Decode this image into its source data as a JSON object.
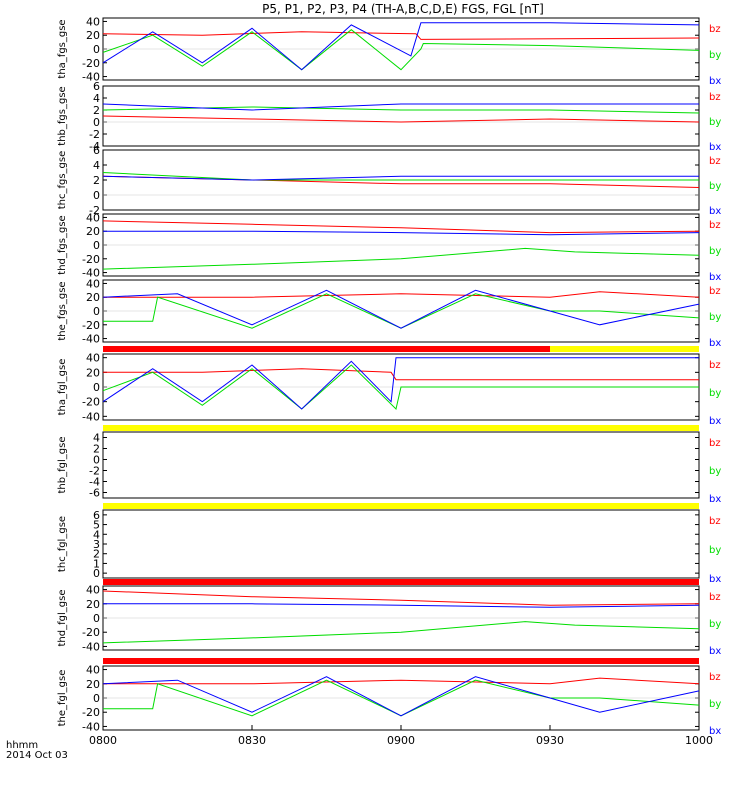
{
  "title": "P5, P1, P2, P3, P4 (TH-A,B,C,D,E) FGS, FGL [nT]",
  "footer": {
    "time_label": "hhmm",
    "date_label": "2014 Oct 03"
  },
  "colors": {
    "bx": "#0000ff",
    "by": "#00dd00",
    "bz": "#ff0000",
    "red_bar": "#ff0000",
    "yellow_bar": "#ffff00"
  },
  "chart_data": {
    "type": "line",
    "x_ticks": [
      "0800",
      "0830",
      "0900",
      "0930",
      "1000"
    ],
    "x_range_minutes": [
      0,
      120
    ],
    "legend": [
      "bz",
      "by",
      "bx"
    ],
    "panels": [
      {
        "ylabel": "tha_fgs_gse",
        "yticks": [
          "40",
          "20",
          "0",
          "-20",
          "-40"
        ],
        "ylim": [
          -45,
          45
        ],
        "series": [
          {
            "name": "bz",
            "points": [
              [
                0,
                22
              ],
              [
                20,
                20
              ],
              [
                40,
                25
              ],
              [
                63,
                22
              ],
              [
                64,
                14
              ],
              [
                120,
                16
              ]
            ]
          },
          {
            "name": "by",
            "points": [
              [
                0,
                -5
              ],
              [
                10,
                20
              ],
              [
                20,
                -25
              ],
              [
                30,
                25
              ],
              [
                40,
                -30
              ],
              [
                50,
                28
              ],
              [
                60,
                -30
              ],
              [
                64,
                0
              ],
              [
                64.5,
                8
              ],
              [
                90,
                5
              ],
              [
                120,
                -2
              ]
            ]
          },
          {
            "name": "bx",
            "points": [
              [
                0,
                -20
              ],
              [
                10,
                25
              ],
              [
                20,
                -20
              ],
              [
                30,
                30
              ],
              [
                40,
                -30
              ],
              [
                50,
                35
              ],
              [
                62,
                -10
              ],
              [
                64,
                38
              ],
              [
                90,
                38
              ],
              [
                120,
                35
              ]
            ]
          }
        ]
      },
      {
        "ylabel": "thb_fgs_gse",
        "yticks": [
          "6",
          "4",
          "2",
          "0",
          "-2",
          "-4"
        ],
        "ylim": [
          -4,
          6
        ],
        "series": [
          {
            "name": "bz",
            "points": [
              [
                0,
                1
              ],
              [
                30,
                0.5
              ],
              [
                60,
                0
              ],
              [
                90,
                0.5
              ],
              [
                120,
                0
              ]
            ]
          },
          {
            "name": "by",
            "points": [
              [
                0,
                2
              ],
              [
                30,
                2.5
              ],
              [
                60,
                2
              ],
              [
                90,
                2
              ],
              [
                120,
                1.5
              ]
            ]
          },
          {
            "name": "bx",
            "points": [
              [
                0,
                3
              ],
              [
                30,
                2
              ],
              [
                60,
                3
              ],
              [
                90,
                3
              ],
              [
                120,
                3
              ]
            ]
          }
        ]
      },
      {
        "ylabel": "thc_fgs_gse",
        "yticks": [
          "6",
          "4",
          "2",
          "0",
          "-2"
        ],
        "ylim": [
          -2,
          6
        ],
        "series": [
          {
            "name": "bz",
            "points": [
              [
                0,
                2.5
              ],
              [
                30,
                2
              ],
              [
                60,
                1.5
              ],
              [
                90,
                1.5
              ],
              [
                120,
                1
              ]
            ]
          },
          {
            "name": "by",
            "points": [
              [
                0,
                3
              ],
              [
                30,
                2
              ],
              [
                60,
                2
              ],
              [
                90,
                2
              ],
              [
                120,
                2
              ]
            ]
          },
          {
            "name": "bx",
            "points": [
              [
                0,
                2.5
              ],
              [
                30,
                2
              ],
              [
                60,
                2.5
              ],
              [
                90,
                2.5
              ],
              [
                120,
                2.5
              ]
            ]
          }
        ]
      },
      {
        "ylabel": "thd_fgs_gse",
        "yticks": [
          "40",
          "20",
          "0",
          "-20",
          "-40"
        ],
        "ylim": [
          -45,
          45
        ],
        "series": [
          {
            "name": "bz",
            "points": [
              [
                0,
                35
              ],
              [
                30,
                30
              ],
              [
                60,
                25
              ],
              [
                90,
                18
              ],
              [
                120,
                20
              ]
            ]
          },
          {
            "name": "by",
            "points": [
              [
                0,
                -35
              ],
              [
                30,
                -28
              ],
              [
                60,
                -20
              ],
              [
                85,
                -5
              ],
              [
                95,
                -10
              ],
              [
                120,
                -15
              ]
            ]
          },
          {
            "name": "bx",
            "points": [
              [
                0,
                20
              ],
              [
                30,
                20
              ],
              [
                60,
                18
              ],
              [
                90,
                15
              ],
              [
                120,
                18
              ]
            ]
          }
        ]
      },
      {
        "ylabel": "the_fgs_gse",
        "yticks": [
          "40",
          "20",
          "0",
          "-20",
          "-40"
        ],
        "ylim": [
          -45,
          45
        ],
        "series": [
          {
            "name": "bz",
            "points": [
              [
                0,
                20
              ],
              [
                30,
                20
              ],
              [
                60,
                25
              ],
              [
                90,
                20
              ],
              [
                100,
                28
              ],
              [
                120,
                20
              ]
            ]
          },
          {
            "name": "by",
            "points": [
              [
                0,
                -15
              ],
              [
                10,
                -15
              ],
              [
                11,
                20
              ],
              [
                30,
                -25
              ],
              [
                45,
                25
              ],
              [
                60,
                -25
              ],
              [
                75,
                25
              ],
              [
                90,
                0
              ],
              [
                100,
                0
              ],
              [
                120,
                -10
              ]
            ]
          },
          {
            "name": "bx",
            "points": [
              [
                0,
                20
              ],
              [
                15,
                25
              ],
              [
                30,
                -20
              ],
              [
                45,
                30
              ],
              [
                60,
                -25
              ],
              [
                75,
                30
              ],
              [
                90,
                0
              ],
              [
                100,
                -20
              ],
              [
                120,
                10
              ]
            ]
          }
        ]
      },
      {
        "ylabel": "tha_fgl_gse",
        "yticks": [
          "40",
          "20",
          "0",
          "-20",
          "-40"
        ],
        "ylim": [
          -45,
          45
        ],
        "series": [
          {
            "name": "bz",
            "points": [
              [
                0,
                20
              ],
              [
                20,
                20
              ],
              [
                40,
                25
              ],
              [
                58,
                20
              ],
              [
                59,
                10
              ],
              [
                120,
                10
              ]
            ]
          },
          {
            "name": "by",
            "points": [
              [
                0,
                -5
              ],
              [
                10,
                20
              ],
              [
                20,
                -25
              ],
              [
                30,
                25
              ],
              [
                40,
                -30
              ],
              [
                50,
                30
              ],
              [
                59,
                -30
              ],
              [
                60,
                0
              ],
              [
                120,
                0
              ]
            ]
          },
          {
            "name": "bx",
            "points": [
              [
                0,
                -20
              ],
              [
                10,
                25
              ],
              [
                20,
                -20
              ],
              [
                30,
                30
              ],
              [
                40,
                -30
              ],
              [
                50,
                35
              ],
              [
                58,
                -20
              ],
              [
                59,
                40
              ],
              [
                120,
                40
              ]
            ]
          }
        ]
      },
      {
        "ylabel": "thb_fgl_gse",
        "yticks": [
          "4",
          "2",
          "0",
          "-2",
          "-4",
          "-6"
        ],
        "ylim": [
          -7,
          5
        ],
        "series": []
      },
      {
        "ylabel": "thc_fgl_gse",
        "yticks": [
          "6",
          "5",
          "4",
          "3",
          "2",
          "1",
          "0"
        ],
        "ylim": [
          -0.5,
          6.5
        ],
        "series": []
      },
      {
        "ylabel": "thd_fgl_gse",
        "yticks": [
          "40",
          "20",
          "0",
          "-20",
          "-40"
        ],
        "ylim": [
          -45,
          45
        ],
        "series": [
          {
            "name": "bz",
            "points": [
              [
                0,
                38
              ],
              [
                30,
                30
              ],
              [
                60,
                25
              ],
              [
                90,
                18
              ],
              [
                120,
                20
              ]
            ]
          },
          {
            "name": "by",
            "points": [
              [
                0,
                -35
              ],
              [
                30,
                -28
              ],
              [
                60,
                -20
              ],
              [
                85,
                -5
              ],
              [
                95,
                -10
              ],
              [
                120,
                -15
              ]
            ]
          },
          {
            "name": "bx",
            "points": [
              [
                0,
                20
              ],
              [
                30,
                20
              ],
              [
                60,
                18
              ],
              [
                90,
                15
              ],
              [
                120,
                18
              ]
            ]
          }
        ]
      },
      {
        "ylabel": "the_fgl_gse",
        "yticks": [
          "40",
          "20",
          "0",
          "-20",
          "-40"
        ],
        "ylim": [
          -45,
          45
        ],
        "series": [
          {
            "name": "bz",
            "points": [
              [
                0,
                20
              ],
              [
                30,
                20
              ],
              [
                60,
                25
              ],
              [
                90,
                20
              ],
              [
                100,
                28
              ],
              [
                120,
                20
              ]
            ]
          },
          {
            "name": "by",
            "points": [
              [
                0,
                -15
              ],
              [
                10,
                -15
              ],
              [
                11,
                20
              ],
              [
                30,
                -25
              ],
              [
                45,
                25
              ],
              [
                60,
                -25
              ],
              [
                75,
                25
              ],
              [
                90,
                0
              ],
              [
                100,
                0
              ],
              [
                120,
                -10
              ]
            ]
          },
          {
            "name": "bx",
            "points": [
              [
                0,
                20
              ],
              [
                15,
                25
              ],
              [
                30,
                -20
              ],
              [
                45,
                30
              ],
              [
                60,
                -25
              ],
              [
                75,
                30
              ],
              [
                90,
                0
              ],
              [
                100,
                -20
              ],
              [
                120,
                10
              ]
            ]
          }
        ]
      }
    ],
    "separators": [
      {
        "after_panel": 4,
        "segments": [
          {
            "color": "red",
            "from": 0,
            "to": 90
          },
          {
            "color": "yellow",
            "from": 90,
            "to": 120
          }
        ]
      },
      {
        "after_panel": 5,
        "segments": [
          {
            "color": "yellow",
            "from": 0,
            "to": 120
          }
        ]
      },
      {
        "after_panel": 6,
        "segments": [
          {
            "color": "yellow",
            "from": 0,
            "to": 120
          }
        ]
      },
      {
        "after_panel": 7,
        "segments": [
          {
            "color": "red",
            "from": 0,
            "to": 120
          }
        ]
      },
      {
        "after_panel": 8,
        "segments": [
          {
            "color": "red",
            "from": 0,
            "to": 120
          }
        ]
      }
    ]
  }
}
